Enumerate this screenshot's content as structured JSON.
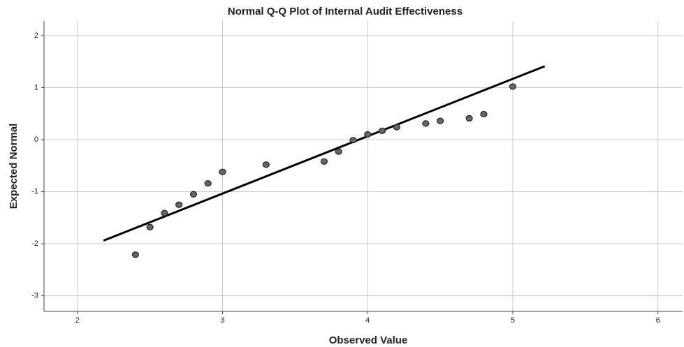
{
  "chart_data": {
    "type": "scatter",
    "title": "Normal Q-Q Plot of Internal Audit Effectiveness",
    "x_label": "Observed Value",
    "y_label": "Expected Normal",
    "x": [
      2.4,
      2.5,
      2.6,
      2.7,
      2.8,
      2.9,
      3.0,
      3.3,
      3.7,
      3.8,
      3.9,
      4.0,
      4.1,
      4.2,
      4.4,
      4.5,
      4.7,
      4.8,
      5.0
    ],
    "values": [
      -2.21,
      -1.68,
      -1.41,
      -1.25,
      -1.05,
      -0.84,
      -0.62,
      -0.48,
      -0.42,
      -0.23,
      -0.01,
      0.1,
      0.17,
      0.24,
      0.31,
      0.36,
      0.41,
      0.49,
      1.02
    ],
    "color": "#666666",
    "reference_line": {
      "x": [
        2.18,
        5.22
      ],
      "y": [
        -1.94,
        1.41
      ],
      "color": "#000000"
    },
    "xlim": [
      1.77,
      6.17
    ],
    "ylim": [
      -3.3,
      2.28
    ],
    "xticks": [
      2,
      3,
      4,
      5,
      6
    ],
    "yticks": [
      -3,
      -2,
      -1,
      0,
      1,
      2
    ],
    "grid": true
  }
}
